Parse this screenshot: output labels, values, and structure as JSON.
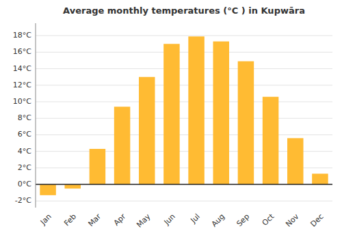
{
  "chart_data": {
    "type": "bar",
    "title": "Average monthly temperatures (°C ) in Kupwāra",
    "categories": [
      "Jan",
      "Feb",
      "Mar",
      "Apr",
      "May",
      "Jun",
      "Jul",
      "Aug",
      "Sep",
      "Oct",
      "Nov",
      "Dec"
    ],
    "values": [
      -1.3,
      -0.5,
      4.3,
      9.4,
      13.0,
      17.0,
      17.9,
      17.3,
      14.9,
      10.6,
      5.6,
      1.3
    ],
    "color": "#FFBB33",
    "ylim": [
      -2.8,
      19.5
    ],
    "yticks": [
      {
        "value": -2,
        "label": "-2°C"
      },
      {
        "value": 0,
        "label": "0°C"
      },
      {
        "value": 2,
        "label": "2°C"
      },
      {
        "value": 4,
        "label": "4°C"
      },
      {
        "value": 6,
        "label": "6°C"
      },
      {
        "value": 8,
        "label": "8°C"
      },
      {
        "value": 10,
        "label": "10°C"
      },
      {
        "value": 12,
        "label": "12°C"
      },
      {
        "value": 14,
        "label": "14°C"
      },
      {
        "value": 16,
        "label": "16°C"
      },
      {
        "value": 18,
        "label": "18°C"
      }
    ],
    "grid": true
  }
}
